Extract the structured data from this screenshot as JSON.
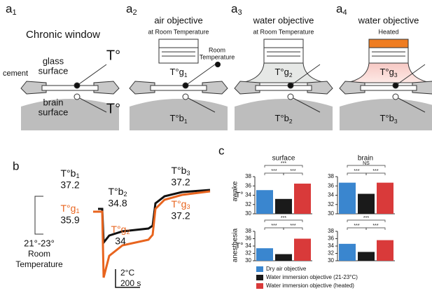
{
  "a_labels": [
    {
      "main": "a",
      "sub": "1"
    },
    {
      "main": "a",
      "sub": "2"
    },
    {
      "main": "a",
      "sub": "3"
    },
    {
      "main": "a",
      "sub": "4"
    }
  ],
  "b_label": "b",
  "c_label": "c",
  "a1": {
    "title": "Chronic window",
    "glass": [
      "glass",
      "surface"
    ],
    "brain": [
      "brain",
      "surface"
    ],
    "t_glass": "T°",
    "t_brain": "T°",
    "cement": "cement"
  },
  "a2": {
    "objective": "air objective",
    "condition": "at Room Temperature",
    "room": [
      "Room",
      "Temperature"
    ],
    "glass": {
      "main": "T°g",
      "sub": "1"
    },
    "brain": {
      "main": "T°b",
      "sub": "1"
    }
  },
  "a3": {
    "objective": "water objective",
    "condition": "at Room Temperature",
    "glass": {
      "main": "T°g",
      "sub": "2"
    },
    "brain": {
      "main": "T°b",
      "sub": "2"
    }
  },
  "a4": {
    "objective": "water objective",
    "condition": "Heated",
    "glass": {
      "main": "T°g",
      "sub": "3"
    },
    "brain": {
      "main": "T°b",
      "sub": "3"
    }
  },
  "b": {
    "labels": [
      {
        "name": {
          "main": "T°b",
          "sub": "1"
        },
        "value": 37.2,
        "color": "#111111"
      },
      {
        "name": {
          "main": "T°g",
          "sub": "1"
        },
        "value": 35.9,
        "color": "#e8641e"
      },
      {
        "name": {
          "main": "T°b",
          "sub": "2"
        },
        "value": 34.8,
        "color": "#111111"
      },
      {
        "name": {
          "main": "T°g",
          "sub": "2"
        },
        "value": 34,
        "color": "#e8641e"
      },
      {
        "name": {
          "main": "T°b",
          "sub": "3"
        },
        "value": 37.2,
        "color": "#111111"
      },
      {
        "name": {
          "main": "T°g",
          "sub": "3"
        },
        "value": 37.2,
        "color": "#e8641e"
      }
    ],
    "room": [
      "21°-23°",
      "Room",
      "Temperature"
    ],
    "scale": [
      "2°C",
      "200 s"
    ]
  },
  "c": {
    "column_titles": [
      "surface",
      "brain"
    ],
    "row_labels": [
      "awake",
      "anesthesia"
    ],
    "legend": [
      {
        "name": "Dry air objective",
        "color": "#3a86cf"
      },
      {
        "name": "Water immersion objective (21-23°C)",
        "color": "#1a1a1a"
      },
      {
        "name": "Water immersion objective (heated)",
        "color": "#d93a3a"
      }
    ]
  },
  "chart_data": [
    {
      "type": "bar",
      "ylabel": "T°",
      "values": [
        35.1,
        33.2,
        36.5
      ],
      "ylim": [
        30,
        38
      ],
      "yticks": [
        30,
        32,
        34,
        36,
        38
      ],
      "significance": [
        {
          "label": "***",
          "pair": [
            0,
            2
          ]
        },
        {
          "label": "***",
          "pair": [
            0,
            1
          ]
        },
        {
          "label": "***",
          "pair": [
            1,
            2
          ]
        }
      ]
    },
    {
      "type": "bar",
      "values": [
        36.7,
        34.3,
        36.7
      ],
      "ylim": [
        30,
        38
      ],
      "yticks": [
        30,
        32,
        34,
        36,
        38
      ],
      "significance": [
        {
          "label": "NS",
          "pair": [
            0,
            2
          ]
        },
        {
          "label": "***",
          "pair": [
            0,
            1
          ]
        },
        {
          "label": "***",
          "pair": [
            1,
            2
          ]
        }
      ]
    },
    {
      "type": "bar",
      "ylabel": "T°",
      "values": [
        33.4,
        31.8,
        36.0
      ],
      "ylim": [
        30,
        38
      ],
      "yticks": [
        30,
        32,
        34,
        36,
        38
      ],
      "significance": [
        {
          "label": "***",
          "pair": [
            0,
            2
          ]
        },
        {
          "label": "***",
          "pair": [
            0,
            1
          ]
        },
        {
          "label": "***",
          "pair": [
            1,
            2
          ]
        }
      ]
    },
    {
      "type": "bar",
      "values": [
        34.6,
        32.4,
        35.6
      ],
      "ylim": [
        30,
        38
      ],
      "yticks": [
        30,
        32,
        34,
        36,
        38
      ],
      "significance": [
        {
          "label": "***",
          "pair": [
            0,
            2
          ]
        },
        {
          "label": "***",
          "pair": [
            0,
            1
          ]
        },
        {
          "label": "***",
          "pair": [
            1,
            2
          ]
        }
      ]
    }
  ]
}
